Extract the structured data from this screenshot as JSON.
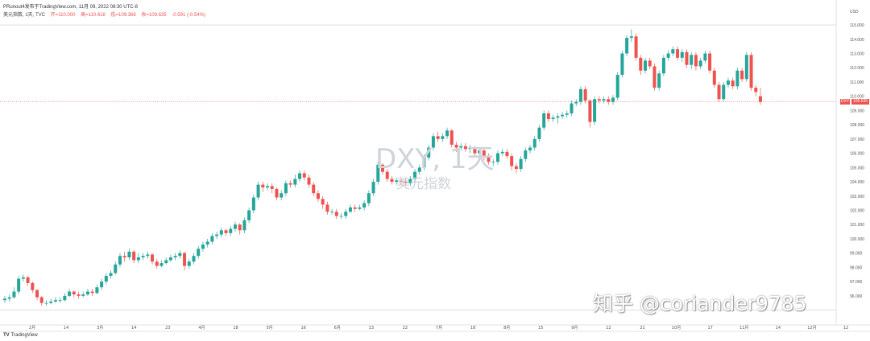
{
  "header": {
    "published": "PRunout4发布于TradingView.com, 11月 09, 2022 08:30 UTC-8"
  },
  "legend": {
    "name": "美元指数, 1天, TVC",
    "open": "开=110.000",
    "high": "高=110.618",
    "low": "低=109.368",
    "close": "收=109.635",
    "change": "-0.591 (-0.54%)"
  },
  "watermark": {
    "symbol": "DXY, 1天",
    "name": "美元指数"
  },
  "overlay_text": "知乎 @coriander9785",
  "logo": {
    "mark": "TV",
    "text": "TradingView"
  },
  "price_tag": {
    "symbol": "DXY",
    "value": "109.635"
  },
  "colors": {
    "up": "#26a69a",
    "down": "#ef5350",
    "grid": "#f0f3fa",
    "axis_text": "#555"
  },
  "chart_data": {
    "type": "candlestick",
    "y_axis": {
      "min": 94.3,
      "max": 116.3,
      "ticks": [
        "96.000",
        "97.000",
        "98.000",
        "99.000",
        "100.000",
        "101.000",
        "102.000",
        "103.000",
        "104.000",
        "105.000",
        "106.000",
        "107.000",
        "108.000",
        "109.000",
        "110.000",
        "111.000",
        "112.000",
        "113.000",
        "114.000",
        "115.000"
      ],
      "top_label": "USD"
    },
    "x_axis": {
      "labels": [
        "2月",
        "14",
        "3月",
        "14",
        "23",
        "4月",
        "18",
        "5月",
        "16",
        "6月",
        "13",
        "22",
        "7月",
        "18",
        "8月",
        "15",
        "9月",
        "12",
        "21",
        "10月",
        "17",
        "11月",
        "14",
        "12月",
        "12"
      ]
    },
    "horizontal_lines": [
      115.0,
      95.0
    ],
    "last_price": 109.635,
    "candles": [
      {
        "o": 95.7,
        "c": 95.8,
        "h": 96.0,
        "l": 95.5
      },
      {
        "o": 95.8,
        "c": 95.9,
        "h": 96.1,
        "l": 95.6
      },
      {
        "o": 95.9,
        "c": 96.3,
        "h": 96.6,
        "l": 95.8
      },
      {
        "o": 96.3,
        "c": 97.2,
        "h": 97.4,
        "l": 96.1
      },
      {
        "o": 97.2,
        "c": 97.3,
        "h": 97.5,
        "l": 97.0
      },
      {
        "o": 97.3,
        "c": 96.9,
        "h": 97.4,
        "l": 96.7
      },
      {
        "o": 96.9,
        "c": 96.4,
        "h": 97.0,
        "l": 96.2
      },
      {
        "o": 96.4,
        "c": 95.9,
        "h": 96.5,
        "l": 95.7
      },
      {
        "o": 95.9,
        "c": 95.5,
        "h": 96.0,
        "l": 95.3
      },
      {
        "o": 95.5,
        "c": 95.5,
        "h": 95.7,
        "l": 95.3
      },
      {
        "o": 95.5,
        "c": 95.6,
        "h": 95.8,
        "l": 95.4
      },
      {
        "o": 95.6,
        "c": 95.7,
        "h": 95.9,
        "l": 95.5
      },
      {
        "o": 95.7,
        "c": 95.7,
        "h": 95.9,
        "l": 95.5
      },
      {
        "o": 95.7,
        "c": 96.0,
        "h": 96.2,
        "l": 95.6
      },
      {
        "o": 96.0,
        "c": 96.3,
        "h": 96.5,
        "l": 95.9
      },
      {
        "o": 96.3,
        "c": 96.1,
        "h": 96.4,
        "l": 95.9
      },
      {
        "o": 96.1,
        "c": 96.0,
        "h": 96.3,
        "l": 95.8
      },
      {
        "o": 96.0,
        "c": 96.1,
        "h": 96.3,
        "l": 95.9
      },
      {
        "o": 96.1,
        "c": 96.3,
        "h": 96.5,
        "l": 96.0
      },
      {
        "o": 96.3,
        "c": 96.2,
        "h": 96.5,
        "l": 96.0
      },
      {
        "o": 96.2,
        "c": 96.6,
        "h": 96.8,
        "l": 96.1
      },
      {
        "o": 96.6,
        "c": 97.0,
        "h": 97.2,
        "l": 96.4
      },
      {
        "o": 97.0,
        "c": 97.4,
        "h": 97.6,
        "l": 96.8
      },
      {
        "o": 97.4,
        "c": 97.6,
        "h": 97.8,
        "l": 97.2
      },
      {
        "o": 97.6,
        "c": 98.2,
        "h": 98.4,
        "l": 97.5
      },
      {
        "o": 98.2,
        "c": 98.8,
        "h": 99.0,
        "l": 98.0
      },
      {
        "o": 98.8,
        "c": 98.7,
        "h": 99.1,
        "l": 98.4
      },
      {
        "o": 98.7,
        "c": 99.1,
        "h": 99.3,
        "l": 98.5
      },
      {
        "o": 99.1,
        "c": 98.5,
        "h": 99.2,
        "l": 98.3
      },
      {
        "o": 98.5,
        "c": 98.7,
        "h": 99.0,
        "l": 98.3
      },
      {
        "o": 98.7,
        "c": 98.8,
        "h": 99.0,
        "l": 98.5
      },
      {
        "o": 98.8,
        "c": 98.9,
        "h": 99.1,
        "l": 98.6
      },
      {
        "o": 98.9,
        "c": 98.4,
        "h": 99.0,
        "l": 98.2
      },
      {
        "o": 98.4,
        "c": 98.1,
        "h": 98.6,
        "l": 97.9
      },
      {
        "o": 98.1,
        "c": 98.3,
        "h": 98.5,
        "l": 98.0
      },
      {
        "o": 98.3,
        "c": 98.5,
        "h": 98.7,
        "l": 98.2
      },
      {
        "o": 98.5,
        "c": 98.7,
        "h": 98.9,
        "l": 98.4
      },
      {
        "o": 98.7,
        "c": 98.8,
        "h": 99.0,
        "l": 98.5
      },
      {
        "o": 98.8,
        "c": 99.0,
        "h": 99.2,
        "l": 98.6
      },
      {
        "o": 99.0,
        "c": 98.1,
        "h": 99.1,
        "l": 97.8
      },
      {
        "o": 98.1,
        "c": 98.4,
        "h": 98.6,
        "l": 97.9
      },
      {
        "o": 98.4,
        "c": 98.8,
        "h": 99.0,
        "l": 98.2
      },
      {
        "o": 98.8,
        "c": 99.3,
        "h": 99.5,
        "l": 98.6
      },
      {
        "o": 99.3,
        "c": 99.6,
        "h": 99.8,
        "l": 99.1
      },
      {
        "o": 99.6,
        "c": 99.8,
        "h": 100.0,
        "l": 99.4
      },
      {
        "o": 99.8,
        "c": 100.2,
        "h": 100.4,
        "l": 99.6
      },
      {
        "o": 100.2,
        "c": 100.3,
        "h": 100.5,
        "l": 100.0
      },
      {
        "o": 100.3,
        "c": 100.6,
        "h": 100.8,
        "l": 100.1
      },
      {
        "o": 100.6,
        "c": 100.4,
        "h": 100.7,
        "l": 100.2
      },
      {
        "o": 100.4,
        "c": 100.7,
        "h": 100.9,
        "l": 100.2
      },
      {
        "o": 100.7,
        "c": 101.0,
        "h": 101.2,
        "l": 100.5
      },
      {
        "o": 101.0,
        "c": 100.6,
        "h": 101.1,
        "l": 100.3
      },
      {
        "o": 100.6,
        "c": 101.3,
        "h": 101.5,
        "l": 100.4
      },
      {
        "o": 101.3,
        "c": 102.0,
        "h": 102.2,
        "l": 101.1
      },
      {
        "o": 102.0,
        "c": 102.9,
        "h": 103.1,
        "l": 101.8
      },
      {
        "o": 102.9,
        "c": 103.8,
        "h": 104.0,
        "l": 102.7
      },
      {
        "o": 103.8,
        "c": 103.6,
        "h": 104.0,
        "l": 103.3
      },
      {
        "o": 103.6,
        "c": 103.7,
        "h": 103.9,
        "l": 103.4
      },
      {
        "o": 103.7,
        "c": 103.5,
        "h": 103.9,
        "l": 103.2
      },
      {
        "o": 103.5,
        "c": 102.9,
        "h": 103.6,
        "l": 102.7
      },
      {
        "o": 102.9,
        "c": 103.2,
        "h": 103.4,
        "l": 102.7
      },
      {
        "o": 103.2,
        "c": 103.9,
        "h": 104.1,
        "l": 103.0
      },
      {
        "o": 103.9,
        "c": 103.8,
        "h": 104.1,
        "l": 103.6
      },
      {
        "o": 103.8,
        "c": 104.2,
        "h": 104.5,
        "l": 103.6
      },
      {
        "o": 104.2,
        "c": 104.6,
        "h": 104.8,
        "l": 104.0
      },
      {
        "o": 104.6,
        "c": 104.3,
        "h": 104.8,
        "l": 104.1
      },
      {
        "o": 104.3,
        "c": 103.8,
        "h": 104.5,
        "l": 103.6
      },
      {
        "o": 103.8,
        "c": 103.2,
        "h": 104.0,
        "l": 103.0
      },
      {
        "o": 103.2,
        "c": 102.8,
        "h": 103.4,
        "l": 102.6
      },
      {
        "o": 102.8,
        "c": 102.4,
        "h": 103.0,
        "l": 102.1
      },
      {
        "o": 102.4,
        "c": 101.9,
        "h": 102.6,
        "l": 101.7
      },
      {
        "o": 101.9,
        "c": 101.9,
        "h": 102.1,
        "l": 101.7
      },
      {
        "o": 101.9,
        "c": 101.6,
        "h": 102.1,
        "l": 101.4
      },
      {
        "o": 101.6,
        "c": 101.6,
        "h": 101.8,
        "l": 101.4
      },
      {
        "o": 101.6,
        "c": 101.9,
        "h": 102.1,
        "l": 101.4
      },
      {
        "o": 101.9,
        "c": 102.2,
        "h": 102.4,
        "l": 101.8
      },
      {
        "o": 102.2,
        "c": 102.1,
        "h": 102.4,
        "l": 101.9
      },
      {
        "o": 102.1,
        "c": 102.2,
        "h": 102.4,
        "l": 102.0
      },
      {
        "o": 102.2,
        "c": 102.5,
        "h": 102.7,
        "l": 102.0
      },
      {
        "o": 102.5,
        "c": 103.2,
        "h": 103.4,
        "l": 102.3
      },
      {
        "o": 103.2,
        "c": 104.0,
        "h": 104.2,
        "l": 103.0
      },
      {
        "o": 104.0,
        "c": 105.2,
        "h": 105.4,
        "l": 103.8
      },
      {
        "o": 105.2,
        "c": 104.7,
        "h": 105.3,
        "l": 104.5
      },
      {
        "o": 104.7,
        "c": 104.2,
        "h": 104.9,
        "l": 104.0
      },
      {
        "o": 104.2,
        "c": 104.0,
        "h": 104.4,
        "l": 103.8
      },
      {
        "o": 104.0,
        "c": 104.1,
        "h": 104.3,
        "l": 103.8
      },
      {
        "o": 104.1,
        "c": 104.0,
        "h": 104.3,
        "l": 103.8
      },
      {
        "o": 104.0,
        "c": 103.9,
        "h": 104.2,
        "l": 103.7
      },
      {
        "o": 103.9,
        "c": 104.2,
        "h": 104.4,
        "l": 103.7
      },
      {
        "o": 104.2,
        "c": 104.7,
        "h": 104.9,
        "l": 104.0
      },
      {
        "o": 104.7,
        "c": 105.0,
        "h": 105.2,
        "l": 104.5
      },
      {
        "o": 105.0,
        "c": 105.7,
        "h": 105.9,
        "l": 104.8
      },
      {
        "o": 105.7,
        "c": 106.4,
        "h": 106.6,
        "l": 105.5
      },
      {
        "o": 106.4,
        "c": 107.2,
        "h": 107.4,
        "l": 106.2
      },
      {
        "o": 107.2,
        "c": 107.0,
        "h": 107.5,
        "l": 106.8
      },
      {
        "o": 107.0,
        "c": 107.2,
        "h": 107.4,
        "l": 106.8
      },
      {
        "o": 107.2,
        "c": 107.6,
        "h": 107.8,
        "l": 107.0
      },
      {
        "o": 107.6,
        "c": 106.6,
        "h": 107.7,
        "l": 106.4
      },
      {
        "o": 106.6,
        "c": 106.4,
        "h": 106.8,
        "l": 106.1
      },
      {
        "o": 106.4,
        "c": 106.5,
        "h": 106.7,
        "l": 106.2
      },
      {
        "o": 106.5,
        "c": 106.3,
        "h": 106.7,
        "l": 106.1
      },
      {
        "o": 106.3,
        "c": 106.4,
        "h": 106.6,
        "l": 106.0
      },
      {
        "o": 106.4,
        "c": 106.0,
        "h": 106.5,
        "l": 105.7
      },
      {
        "o": 106.0,
        "c": 106.2,
        "h": 106.4,
        "l": 105.8
      },
      {
        "o": 106.2,
        "c": 105.8,
        "h": 106.3,
        "l": 105.5
      },
      {
        "o": 105.8,
        "c": 105.4,
        "h": 106.0,
        "l": 105.2
      },
      {
        "o": 105.4,
        "c": 105.4,
        "h": 105.6,
        "l": 105.1
      },
      {
        "o": 105.4,
        "c": 106.0,
        "h": 106.2,
        "l": 105.2
      },
      {
        "o": 106.0,
        "c": 106.1,
        "h": 106.3,
        "l": 105.8
      },
      {
        "o": 106.1,
        "c": 105.8,
        "h": 106.3,
        "l": 105.6
      },
      {
        "o": 105.8,
        "c": 105.1,
        "h": 106.0,
        "l": 104.8
      },
      {
        "o": 105.1,
        "c": 104.9,
        "h": 105.3,
        "l": 104.6
      },
      {
        "o": 104.9,
        "c": 105.6,
        "h": 105.8,
        "l": 104.7
      },
      {
        "o": 105.6,
        "c": 106.2,
        "h": 106.4,
        "l": 105.4
      },
      {
        "o": 106.2,
        "c": 106.4,
        "h": 106.6,
        "l": 106.0
      },
      {
        "o": 106.4,
        "c": 107.0,
        "h": 107.2,
        "l": 106.2
      },
      {
        "o": 107.0,
        "c": 107.8,
        "h": 108.0,
        "l": 106.8
      },
      {
        "o": 107.8,
        "c": 108.8,
        "h": 109.0,
        "l": 107.6
      },
      {
        "o": 108.8,
        "c": 108.4,
        "h": 109.0,
        "l": 108.2
      },
      {
        "o": 108.4,
        "c": 108.5,
        "h": 108.7,
        "l": 108.2
      },
      {
        "o": 108.5,
        "c": 108.6,
        "h": 108.8,
        "l": 108.1
      },
      {
        "o": 108.6,
        "c": 108.7,
        "h": 108.9,
        "l": 108.4
      },
      {
        "o": 108.7,
        "c": 108.8,
        "h": 109.0,
        "l": 108.5
      },
      {
        "o": 108.8,
        "c": 109.5,
        "h": 109.7,
        "l": 108.6
      },
      {
        "o": 109.5,
        "c": 109.6,
        "h": 109.8,
        "l": 109.3
      },
      {
        "o": 109.6,
        "c": 110.5,
        "h": 110.7,
        "l": 109.4
      },
      {
        "o": 110.5,
        "c": 109.7,
        "h": 110.7,
        "l": 109.5
      },
      {
        "o": 109.7,
        "c": 108.2,
        "h": 109.8,
        "l": 107.8
      },
      {
        "o": 108.2,
        "c": 109.8,
        "h": 110.0,
        "l": 108.0
      },
      {
        "o": 109.8,
        "c": 109.7,
        "h": 110.0,
        "l": 109.5
      },
      {
        "o": 109.7,
        "c": 109.8,
        "h": 110.0,
        "l": 109.5
      },
      {
        "o": 109.8,
        "c": 109.6,
        "h": 110.0,
        "l": 109.4
      },
      {
        "o": 109.6,
        "c": 109.9,
        "h": 110.1,
        "l": 109.4
      },
      {
        "o": 109.9,
        "c": 111.5,
        "h": 111.7,
        "l": 109.7
      },
      {
        "o": 111.5,
        "c": 113.0,
        "h": 113.2,
        "l": 111.3
      },
      {
        "o": 113.0,
        "c": 114.1,
        "h": 114.3,
        "l": 112.8
      },
      {
        "o": 114.1,
        "c": 114.2,
        "h": 114.7,
        "l": 113.8
      },
      {
        "o": 114.2,
        "c": 112.7,
        "h": 114.4,
        "l": 112.5
      },
      {
        "o": 112.7,
        "c": 111.8,
        "h": 112.9,
        "l": 111.5
      },
      {
        "o": 111.8,
        "c": 112.5,
        "h": 112.7,
        "l": 111.6
      },
      {
        "o": 112.5,
        "c": 112.1,
        "h": 112.7,
        "l": 111.9
      },
      {
        "o": 112.1,
        "c": 110.6,
        "h": 112.3,
        "l": 110.4
      },
      {
        "o": 110.6,
        "c": 111.6,
        "h": 111.8,
        "l": 110.4
      },
      {
        "o": 111.6,
        "c": 112.7,
        "h": 112.9,
        "l": 111.4
      },
      {
        "o": 112.7,
        "c": 113.0,
        "h": 113.2,
        "l": 112.5
      },
      {
        "o": 113.0,
        "c": 113.3,
        "h": 113.5,
        "l": 112.8
      },
      {
        "o": 113.3,
        "c": 112.7,
        "h": 113.5,
        "l": 112.5
      },
      {
        "o": 112.7,
        "c": 113.1,
        "h": 113.3,
        "l": 112.4
      },
      {
        "o": 113.1,
        "c": 112.2,
        "h": 113.3,
        "l": 112.0
      },
      {
        "o": 112.2,
        "c": 112.9,
        "h": 113.1,
        "l": 111.9
      },
      {
        "o": 112.9,
        "c": 112.1,
        "h": 113.1,
        "l": 111.8
      },
      {
        "o": 112.1,
        "c": 112.5,
        "h": 112.7,
        "l": 111.9
      },
      {
        "o": 112.5,
        "c": 113.0,
        "h": 113.2,
        "l": 112.3
      },
      {
        "o": 113.0,
        "c": 111.8,
        "h": 113.2,
        "l": 111.6
      },
      {
        "o": 111.8,
        "c": 110.8,
        "h": 112.0,
        "l": 110.6
      },
      {
        "o": 110.8,
        "c": 109.8,
        "h": 111.0,
        "l": 109.6
      },
      {
        "o": 109.8,
        "c": 110.8,
        "h": 111.0,
        "l": 109.6
      },
      {
        "o": 110.8,
        "c": 111.1,
        "h": 111.3,
        "l": 110.6
      },
      {
        "o": 111.1,
        "c": 110.7,
        "h": 111.3,
        "l": 110.5
      },
      {
        "o": 110.7,
        "c": 111.8,
        "h": 112.0,
        "l": 110.5
      },
      {
        "o": 111.8,
        "c": 111.2,
        "h": 112.0,
        "l": 111.0
      },
      {
        "o": 111.2,
        "c": 112.9,
        "h": 113.1,
        "l": 111.0
      },
      {
        "o": 112.9,
        "c": 110.6,
        "h": 113.1,
        "l": 110.4
      },
      {
        "o": 110.6,
        "c": 110.3,
        "h": 110.8,
        "l": 110.0
      },
      {
        "o": 110.0,
        "c": 109.6,
        "h": 110.6,
        "l": 109.4
      }
    ]
  }
}
